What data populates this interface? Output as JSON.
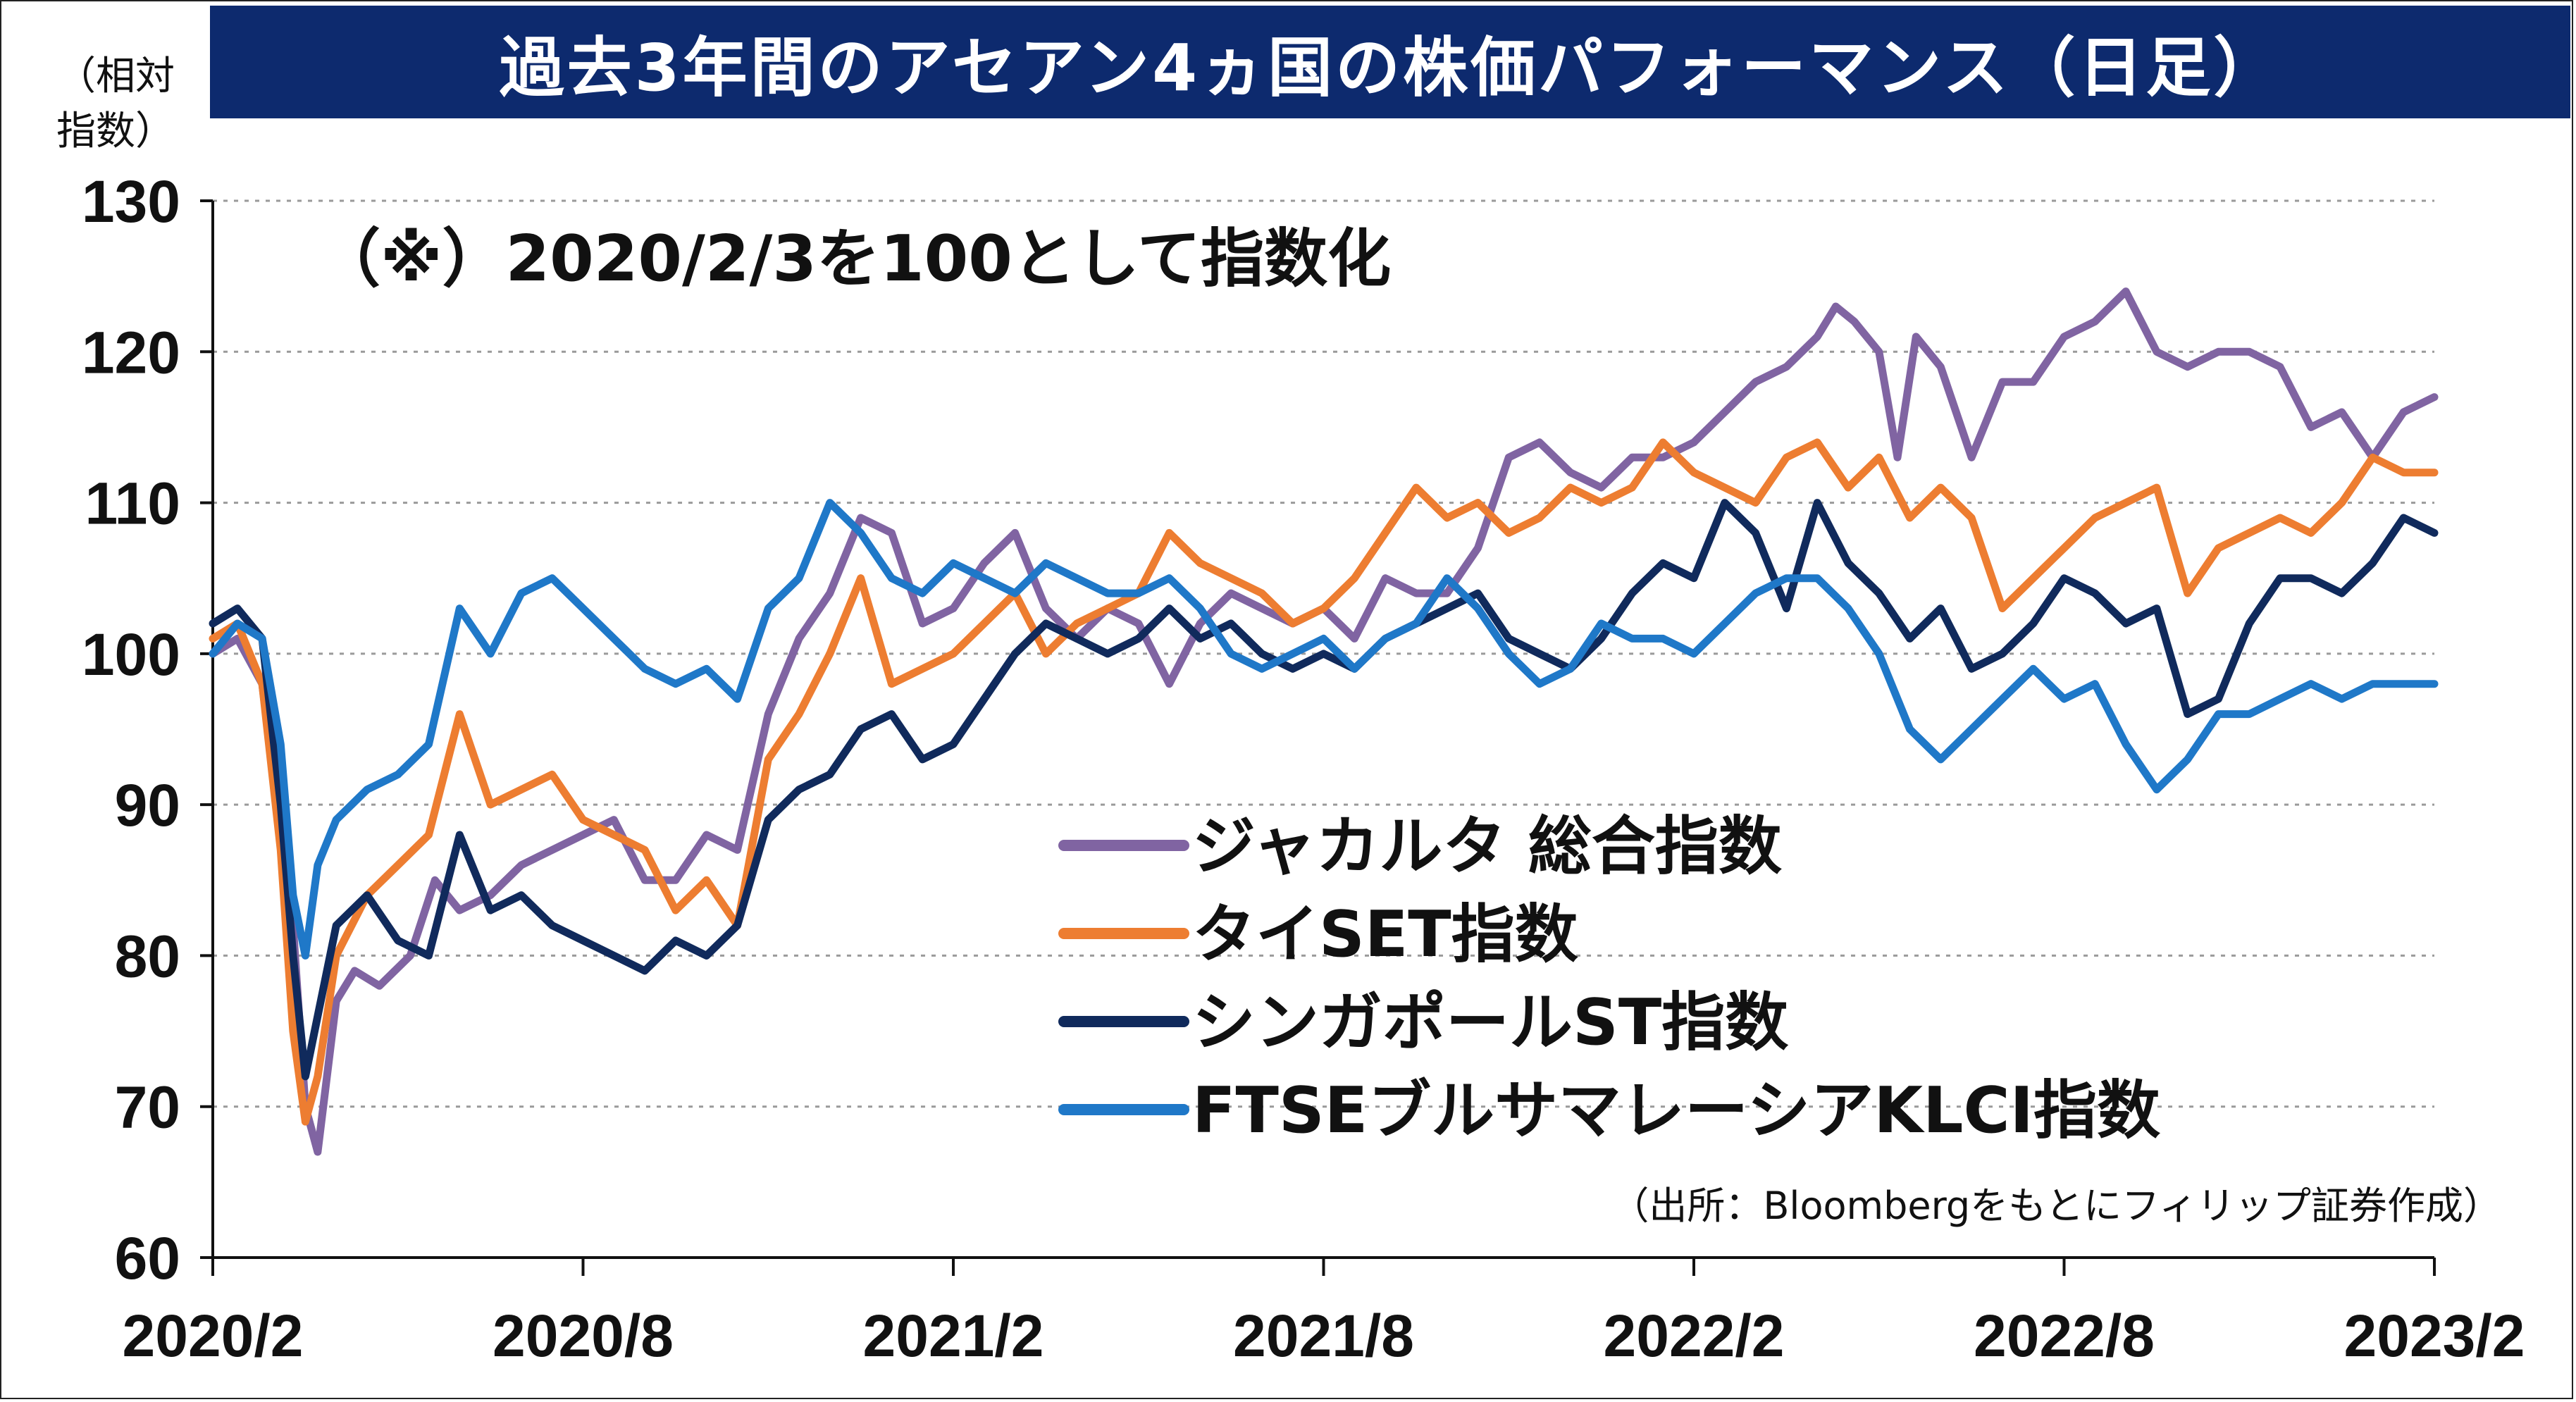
{
  "title": "過去3年間のアセアン4ヵ国の株価パフォーマンス（日足）",
  "ylabel_line1": "（相対",
  "ylabel_line2": "指数）",
  "note": "（※）2020/2/3を100として指数化",
  "source": "（出所：Bloombergをもとにフィリップ証券作成）",
  "chart_data": {
    "type": "line",
    "ylim": [
      60,
      130
    ],
    "yticks": [
      60,
      70,
      80,
      90,
      100,
      110,
      120,
      130
    ],
    "xlim": [
      0,
      36
    ],
    "xticks": [
      {
        "m": 0,
        "label": "2020/2"
      },
      {
        "m": 6,
        "label": "2020/8"
      },
      {
        "m": 12,
        "label": "2021/2"
      },
      {
        "m": 18,
        "label": "2021/8"
      },
      {
        "m": 24,
        "label": "2022/2"
      },
      {
        "m": 30,
        "label": "2022/8"
      },
      {
        "m": 36,
        "label": "2023/2"
      }
    ],
    "grid": true,
    "legend_position": "lower-center",
    "series": [
      {
        "name": "ジャカルタ 総合指数",
        "color": "#8064a2",
        "x": [
          0,
          0.4,
          0.8,
          1.1,
          1.3,
          1.5,
          1.7,
          2.0,
          2.3,
          2.7,
          3.2,
          3.6,
          4.0,
          4.5,
          5.0,
          5.5,
          6.0,
          6.5,
          7.0,
          7.5,
          8.0,
          8.5,
          9.0,
          9.5,
          10.0,
          10.5,
          11.0,
          11.5,
          12.0,
          12.5,
          13.0,
          13.5,
          14.0,
          14.5,
          15.0,
          15.5,
          16.0,
          16.5,
          17.0,
          17.5,
          18.0,
          18.5,
          19.0,
          19.5,
          20.0,
          20.5,
          21.0,
          21.5,
          22.0,
          22.5,
          23.0,
          23.5,
          24.0,
          24.5,
          25.0,
          25.5,
          26.0,
          26.3,
          26.6,
          27.0,
          27.3,
          27.6,
          28.0,
          28.5,
          29.0,
          29.5,
          30.0,
          30.5,
          31.0,
          31.5,
          32.0,
          32.5,
          33.0,
          33.5,
          34.0,
          34.5,
          35.0,
          35.5,
          36.0
        ],
        "y": [
          100,
          101,
          98,
          88,
          82,
          70,
          67,
          77,
          79,
          78,
          80,
          85,
          83,
          84,
          86,
          87,
          88,
          89,
          85,
          85,
          88,
          87,
          96,
          101,
          104,
          109,
          108,
          102,
          103,
          106,
          108,
          103,
          101,
          103,
          102,
          98,
          102,
          104,
          103,
          102,
          103,
          101,
          105,
          104,
          104,
          107,
          113,
          114,
          112,
          111,
          113,
          113,
          114,
          116,
          118,
          119,
          121,
          123,
          122,
          120,
          113,
          121,
          119,
          113,
          118,
          118,
          121,
          122,
          124,
          120,
          119,
          120,
          120,
          119,
          115,
          116,
          113,
          116,
          117
        ]
      },
      {
        "name": "タイSET指数",
        "color": "#ed7d31",
        "x": [
          0,
          0.4,
          0.8,
          1.1,
          1.3,
          1.5,
          1.7,
          2.0,
          2.5,
          3.0,
          3.5,
          4.0,
          4.5,
          5.0,
          5.5,
          6.0,
          6.5,
          7.0,
          7.5,
          8.0,
          8.5,
          9.0,
          9.5,
          10.0,
          10.5,
          11.0,
          11.5,
          12.0,
          12.5,
          13.0,
          13.5,
          14.0,
          14.5,
          15.0,
          15.5,
          16.0,
          16.5,
          17.0,
          17.5,
          18.0,
          18.5,
          19.0,
          19.5,
          20.0,
          20.5,
          21.0,
          21.5,
          22.0,
          22.5,
          23.0,
          23.5,
          24.0,
          24.5,
          25.0,
          25.5,
          26.0,
          26.5,
          27.0,
          27.5,
          28.0,
          28.5,
          29.0,
          29.5,
          30.0,
          30.5,
          31.0,
          31.5,
          32.0,
          32.5,
          33.0,
          33.5,
          34.0,
          34.5,
          35.0,
          35.5,
          36.0
        ],
        "y": [
          101,
          102,
          98,
          87,
          75,
          69,
          72,
          80,
          84,
          86,
          88,
          96,
          90,
          91,
          92,
          89,
          88,
          87,
          83,
          85,
          82,
          93,
          96,
          100,
          105,
          98,
          99,
          100,
          102,
          104,
          100,
          102,
          103,
          104,
          108,
          106,
          105,
          104,
          102,
          103,
          105,
          108,
          111,
          109,
          110,
          108,
          109,
          111,
          110,
          111,
          114,
          112,
          111,
          110,
          113,
          114,
          111,
          113,
          109,
          111,
          109,
          103,
          105,
          107,
          109,
          110,
          111,
          104,
          107,
          108,
          109,
          108,
          110,
          113,
          112,
          112
        ]
      },
      {
        "name": "シンガポールST指数",
        "color": "#102a5c",
        "x": [
          0,
          0.4,
          0.8,
          1.1,
          1.3,
          1.5,
          1.7,
          2.0,
          2.5,
          3.0,
          3.5,
          4.0,
          4.5,
          5.0,
          5.5,
          6.0,
          6.5,
          7.0,
          7.5,
          8.0,
          8.5,
          9.0,
          9.5,
          10.0,
          10.5,
          11.0,
          11.5,
          12.0,
          12.5,
          13.0,
          13.5,
          14.0,
          14.5,
          15.0,
          15.5,
          16.0,
          16.5,
          17.0,
          17.5,
          18.0,
          18.5,
          19.0,
          19.5,
          20.0,
          20.5,
          21.0,
          21.5,
          22.0,
          22.5,
          23.0,
          23.5,
          24.0,
          24.5,
          25.0,
          25.5,
          26.0,
          26.5,
          27.0,
          27.5,
          28.0,
          28.5,
          29.0,
          29.5,
          30.0,
          30.5,
          31.0,
          31.5,
          32.0,
          32.5,
          33.0,
          33.5,
          34.0,
          34.5,
          35.0,
          35.5,
          36.0
        ],
        "y": [
          102,
          103,
          101,
          90,
          80,
          72,
          76,
          82,
          84,
          81,
          80,
          88,
          83,
          84,
          82,
          81,
          80,
          79,
          81,
          80,
          82,
          89,
          91,
          92,
          95,
          96,
          93,
          94,
          97,
          100,
          102,
          101,
          100,
          101,
          103,
          101,
          102,
          100,
          99,
          100,
          99,
          101,
          102,
          103,
          104,
          101,
          100,
          99,
          101,
          104,
          106,
          105,
          110,
          108,
          103,
          110,
          106,
          104,
          101,
          103,
          99,
          100,
          102,
          105,
          104,
          102,
          103,
          96,
          97,
          102,
          105,
          105,
          104,
          106,
          109,
          108
        ]
      },
      {
        "name": "FTSEブルサマレーシアKLCI指数",
        "color": "#1f78c8",
        "x": [
          0,
          0.4,
          0.8,
          1.1,
          1.3,
          1.5,
          1.7,
          2.0,
          2.5,
          3.0,
          3.5,
          4.0,
          4.5,
          5.0,
          5.5,
          6.0,
          6.5,
          7.0,
          7.5,
          8.0,
          8.5,
          9.0,
          9.5,
          10.0,
          10.5,
          11.0,
          11.5,
          12.0,
          12.5,
          13.0,
          13.5,
          14.0,
          14.5,
          15.0,
          15.5,
          16.0,
          16.5,
          17.0,
          17.5,
          18.0,
          18.5,
          19.0,
          19.5,
          20.0,
          20.5,
          21.0,
          21.5,
          22.0,
          22.5,
          23.0,
          23.5,
          24.0,
          24.5,
          25.0,
          25.5,
          26.0,
          26.5,
          27.0,
          27.5,
          28.0,
          28.5,
          29.0,
          29.5,
          30.0,
          30.5,
          31.0,
          31.5,
          32.0,
          32.5,
          33.0,
          33.5,
          34.0,
          34.5,
          35.0,
          35.5,
          36.0
        ],
        "y": [
          100,
          102,
          101,
          94,
          84,
          80,
          86,
          89,
          91,
          92,
          94,
          103,
          100,
          104,
          105,
          103,
          101,
          99,
          98,
          99,
          97,
          103,
          105,
          110,
          108,
          105,
          104,
          106,
          105,
          104,
          106,
          105,
          104,
          104,
          105,
          103,
          100,
          99,
          100,
          101,
          99,
          101,
          102,
          105,
          103,
          100,
          98,
          99,
          102,
          101,
          101,
          100,
          102,
          104,
          105,
          105,
          103,
          100,
          95,
          93,
          95,
          97,
          99,
          97,
          98,
          94,
          91,
          93,
          96,
          96,
          97,
          98,
          97,
          98,
          98,
          98
        ]
      }
    ]
  }
}
